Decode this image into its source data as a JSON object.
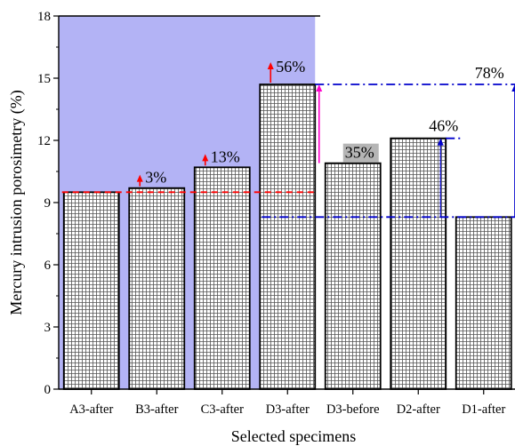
{
  "chart_data": {
    "type": "bar",
    "title": "",
    "xlabel": "Selected specimens",
    "ylabel": "Mercury intrusion porosimetry (%)",
    "ylim": [
      0,
      18
    ],
    "yticks": [
      0,
      3,
      6,
      9,
      12,
      15,
      18
    ],
    "ytick_labels": [
      "0",
      "3",
      "6",
      "9",
      "12",
      "15",
      "18"
    ],
    "categories": [
      "A3-after",
      "B3-after",
      "C3-after",
      "D3-after",
      "D3-before",
      "D2-after",
      "D1-after"
    ],
    "values": [
      9.5,
      9.7,
      10.7,
      14.7,
      10.9,
      12.1,
      8.3
    ],
    "bar_fill": "grid-hatch",
    "annotations": [
      {
        "category": "B3-after",
        "text": "3%",
        "arrow": "up",
        "color": "#ff0000"
      },
      {
        "category": "C3-after",
        "text": "13%",
        "arrow": "up",
        "color": "#ff0000"
      },
      {
        "category": "D3-after",
        "text": "56%",
        "arrow": "up",
        "color": "#ff0000"
      },
      {
        "category": "D3-before",
        "text": "35%",
        "highlight": "#b5b5b5",
        "arrow_color": "#ff00cc"
      },
      {
        "category": "D2-after",
        "text": "46%",
        "arrow_color": "#0000cc"
      },
      {
        "category": "D1-after",
        "text": "78%",
        "arrow_color": "#0000cc"
      }
    ],
    "reference_lines": [
      {
        "y": 9.5,
        "style": "dashed",
        "color": "#ff0000"
      },
      {
        "y": 8.3,
        "style": "dash-dot",
        "color": "#0000cc"
      },
      {
        "y": 12.1,
        "style": "dash-dot",
        "color": "#0000cc"
      },
      {
        "y": 14.7,
        "style": "dash-dot",
        "color": "#0000cc"
      }
    ],
    "shaded_region": {
      "from_category": "A3-after",
      "to_category": "D3-after",
      "color": "#b3b3f5"
    },
    "grid": false,
    "legend": "none"
  }
}
